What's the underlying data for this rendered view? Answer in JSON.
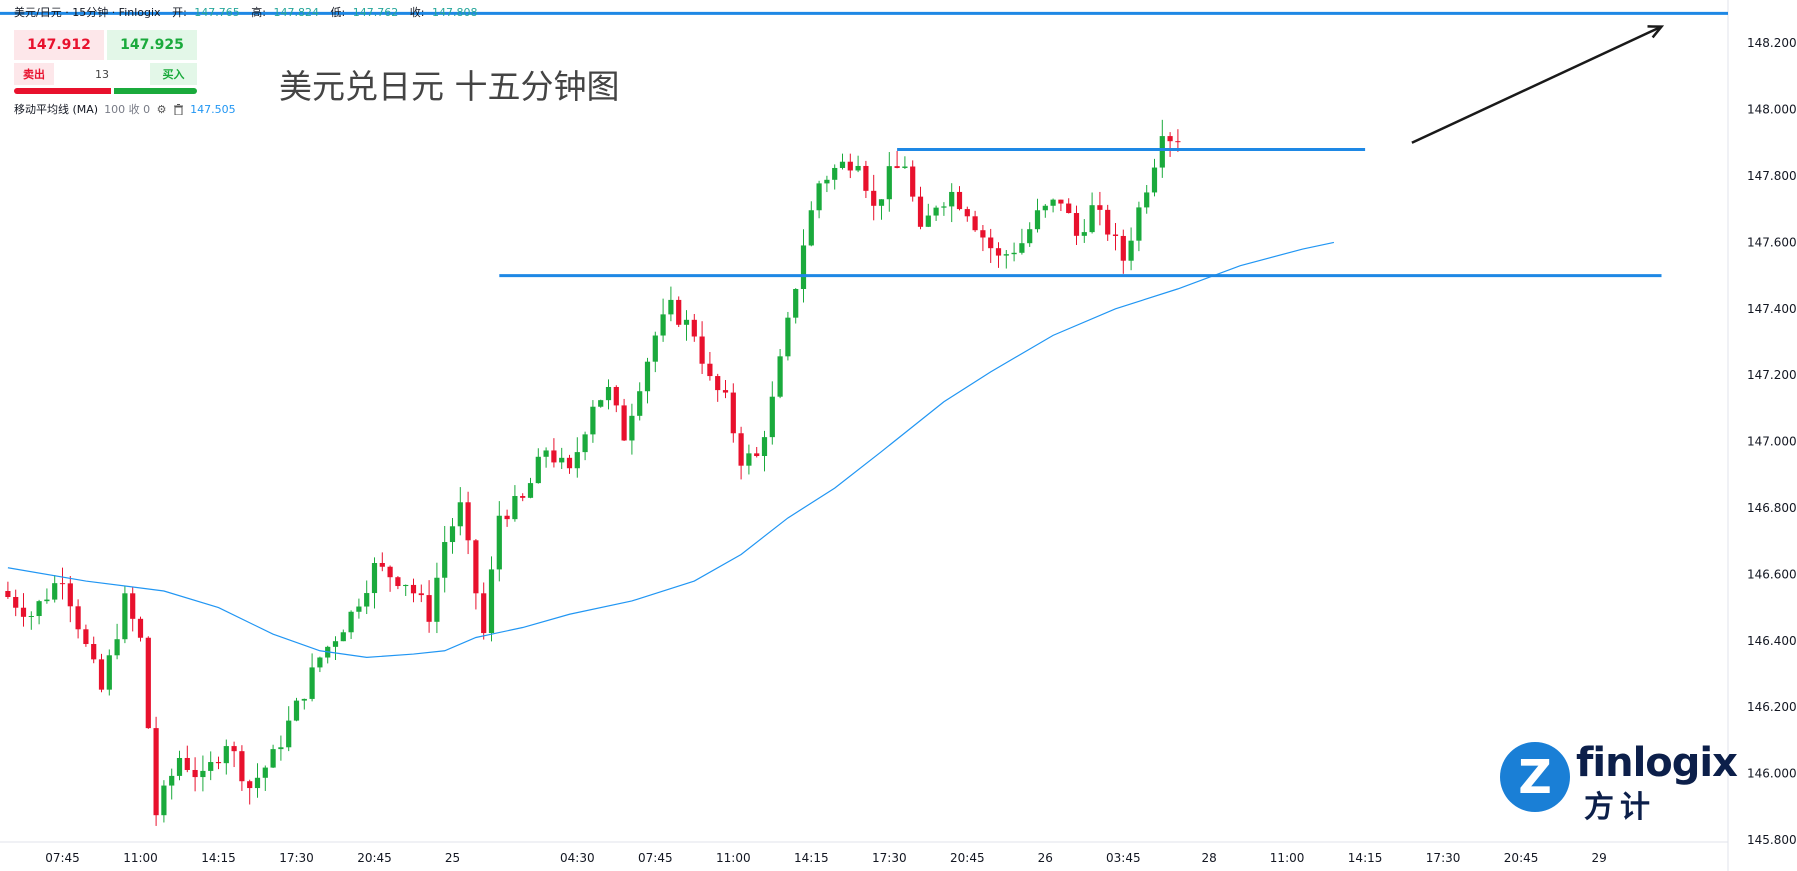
{
  "header": {
    "symbol": "美元/日元 · 15分钟 · Finlogix",
    "open_label": "开:",
    "open": "147.765",
    "high_label": "高:",
    "high": "147.824",
    "low_label": "低:",
    "low": "147.762",
    "close_label": "收:",
    "close": "147.808"
  },
  "trade_panel": {
    "sell_price": "147.912",
    "buy_price": "147.925",
    "sell_label": "卖出",
    "buy_label": "买入",
    "quantity": "13"
  },
  "indicator": {
    "name": "移动平均线 (MA)",
    "params": "100 收 0",
    "value": "147.505"
  },
  "annotation_title": "美元兑日元 十五分钟图",
  "logo": {
    "text_en": "finlogix",
    "text_zh": "方计",
    "mark": "Z"
  },
  "colors": {
    "up": "#1aaa3c",
    "down": "#e8112d",
    "ma_line": "#2196f3",
    "level_line": "#1e88e5",
    "arrow": "#1a1a1a"
  },
  "chart_data": {
    "type": "candlestick",
    "ylim": [
      145.8,
      148.3
    ],
    "y_ticks": [
      "148.200",
      "148.000",
      "147.800",
      "147.600",
      "147.400",
      "147.200",
      "147.000",
      "146.800",
      "146.600",
      "146.400",
      "146.200",
      "146.000",
      "145.800"
    ],
    "y_tick_values": [
      148.2,
      148.0,
      147.8,
      147.6,
      147.4,
      147.2,
      147.0,
      146.8,
      146.6,
      146.4,
      146.2,
      146.0,
      145.8
    ],
    "x_ticks": [
      "07:45",
      "11:00",
      "14:15",
      "17:30",
      "20:45",
      "25",
      "04:30",
      "07:45",
      "11:00",
      "14:15",
      "17:30",
      "20:45",
      "26",
      "03:45",
      "28",
      "11:00",
      "14:15",
      "17:30",
      "20:45",
      "29"
    ],
    "grid": false,
    "price_path": [
      [
        0,
        146.55
      ],
      [
        4,
        146.48
      ],
      [
        8,
        146.6
      ],
      [
        11,
        146.38
      ],
      [
        13,
        146.25
      ],
      [
        16,
        146.52
      ],
      [
        18,
        146.4
      ],
      [
        20,
        145.88
      ],
      [
        23,
        146.05
      ],
      [
        26,
        145.98
      ],
      [
        29,
        146.1
      ],
      [
        32,
        145.96
      ],
      [
        35,
        146.05
      ],
      [
        38,
        146.2
      ],
      [
        41,
        146.35
      ],
      [
        45,
        146.48
      ],
      [
        48,
        146.62
      ],
      [
        52,
        146.58
      ],
      [
        55,
        146.48
      ],
      [
        57,
        146.7
      ],
      [
        59,
        146.8
      ],
      [
        62,
        146.42
      ],
      [
        64,
        146.78
      ],
      [
        67,
        146.82
      ],
      [
        70,
        146.98
      ],
      [
        73,
        146.9
      ],
      [
        76,
        147.12
      ],
      [
        78,
        147.15
      ],
      [
        80,
        147.02
      ],
      [
        82,
        147.18
      ],
      [
        84,
        147.32
      ],
      [
        86,
        147.4
      ],
      [
        89,
        147.33
      ],
      [
        91,
        147.18
      ],
      [
        93,
        147.12
      ],
      [
        95,
        146.95
      ],
      [
        97,
        146.95
      ],
      [
        99,
        147.12
      ],
      [
        101,
        147.35
      ],
      [
        103,
        147.6
      ],
      [
        105,
        147.78
      ],
      [
        107,
        147.82
      ],
      [
        110,
        147.86
      ],
      [
        112,
        147.7
      ],
      [
        114,
        147.8
      ],
      [
        116,
        147.84
      ],
      [
        118,
        147.62
      ],
      [
        120,
        147.72
      ],
      [
        122,
        147.75
      ],
      [
        124,
        147.7
      ],
      [
        126,
        147.62
      ],
      [
        128,
        147.55
      ],
      [
        131,
        147.6
      ],
      [
        133,
        147.68
      ],
      [
        136,
        147.73
      ],
      [
        138,
        147.62
      ],
      [
        140,
        147.7
      ],
      [
        142,
        147.64
      ],
      [
        144,
        147.55
      ],
      [
        146,
        147.7
      ],
      [
        148,
        147.85
      ],
      [
        149,
        147.95
      ],
      [
        150,
        147.92
      ]
    ],
    "candle_count": 220,
    "x_tick_positions": [
      7,
      17,
      27,
      37,
      47,
      57,
      73,
      83,
      93,
      103,
      113,
      123,
      133,
      143,
      154,
      164,
      174,
      184,
      194,
      204
    ],
    "ma100_path": [
      [
        0,
        146.62
      ],
      [
        10,
        146.58
      ],
      [
        20,
        146.55
      ],
      [
        27,
        146.5
      ],
      [
        34,
        146.42
      ],
      [
        40,
        146.37
      ],
      [
        46,
        146.35
      ],
      [
        52,
        146.36
      ],
      [
        56,
        146.37
      ],
      [
        60,
        146.41
      ],
      [
        66,
        146.44
      ],
      [
        72,
        146.48
      ],
      [
        80,
        146.52
      ],
      [
        88,
        146.58
      ],
      [
        94,
        146.66
      ],
      [
        100,
        146.77
      ],
      [
        106,
        146.86
      ],
      [
        112,
        146.97
      ],
      [
        120,
        147.12
      ],
      [
        126,
        147.21
      ],
      [
        134,
        147.32
      ],
      [
        142,
        147.4
      ],
      [
        150,
        147.46
      ],
      [
        158,
        147.53
      ],
      [
        166,
        147.58
      ],
      [
        170,
        147.6
      ]
    ],
    "levels": [
      {
        "y": 148.29,
        "x_from": 0,
        "x_to": 220
      },
      {
        "y": 147.88,
        "x_from": 114,
        "x_to": 174
      },
      {
        "y": 147.5,
        "x_from": 63,
        "x_to": 212
      }
    ],
    "arrow": {
      "from": [
        180,
        147.9
      ],
      "to": [
        212,
        148.25
      ]
    }
  }
}
